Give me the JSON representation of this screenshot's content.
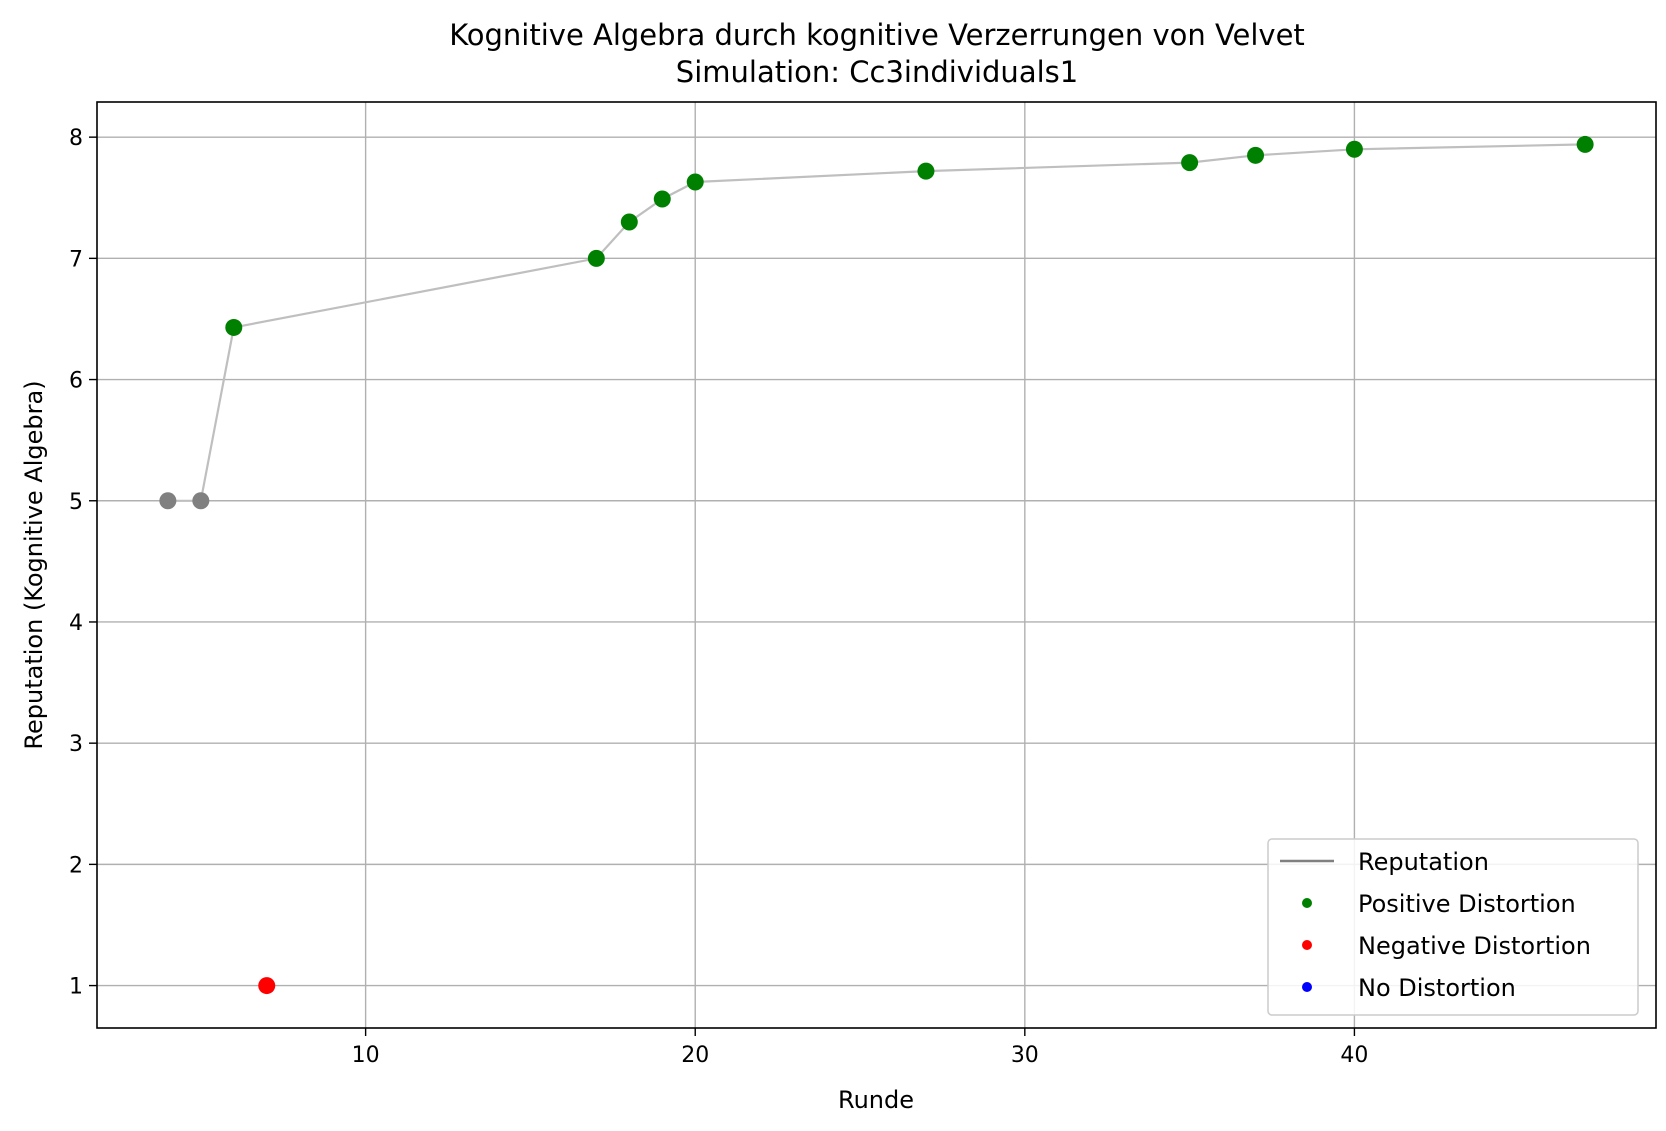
{
  "chart_data": {
    "type": "scatter",
    "title": "Kognitive Algebra durch kognitive Verzerrungen von Velvet",
    "subtitle": "Simulation: Cc3individuals1",
    "xlabel": "Runde",
    "ylabel": "Reputation (Kognitive Algebra)",
    "xlim": [
      1.85,
      49.15
    ],
    "ylim": [
      0.65,
      8.29
    ],
    "xticks": [
      10,
      20,
      30,
      40
    ],
    "yticks": [
      1,
      2,
      3,
      4,
      5,
      6,
      7,
      8
    ],
    "grid": true,
    "legend_position": "lower right",
    "legend": [
      {
        "label": "Reputation",
        "kind": "line",
        "color": "#808080"
      },
      {
        "label": "Positive Distortion",
        "kind": "marker",
        "color": "#008000"
      },
      {
        "label": "Negative Distortion",
        "kind": "marker",
        "color": "#ff0000"
      },
      {
        "label": "No Distortion",
        "kind": "marker",
        "color": "#0000ff"
      }
    ],
    "line": {
      "color": "#bfbfbf",
      "x": [
        4,
        5,
        6,
        17,
        18,
        19,
        20,
        27,
        35,
        37,
        40,
        47
      ],
      "y": [
        5.0,
        5.0,
        6.43,
        7.0,
        7.3,
        7.49,
        7.63,
        7.72,
        7.79,
        7.85,
        7.9,
        7.94
      ]
    },
    "points": [
      {
        "x": 4,
        "y": 5.0,
        "color": "#808080"
      },
      {
        "x": 5,
        "y": 5.0,
        "color": "#808080"
      },
      {
        "x": 6,
        "y": 6.43,
        "color": "#008000"
      },
      {
        "x": 7,
        "y": 1.0,
        "color": "#ff0000"
      },
      {
        "x": 17,
        "y": 7.0,
        "color": "#008000"
      },
      {
        "x": 18,
        "y": 7.3,
        "color": "#008000"
      },
      {
        "x": 19,
        "y": 7.49,
        "color": "#008000"
      },
      {
        "x": 20,
        "y": 7.63,
        "color": "#008000"
      },
      {
        "x": 27,
        "y": 7.72,
        "color": "#008000"
      },
      {
        "x": 35,
        "y": 7.79,
        "color": "#008000"
      },
      {
        "x": 37,
        "y": 7.85,
        "color": "#008000"
      },
      {
        "x": 40,
        "y": 7.9,
        "color": "#008000"
      },
      {
        "x": 47,
        "y": 7.94,
        "color": "#008000"
      }
    ]
  }
}
